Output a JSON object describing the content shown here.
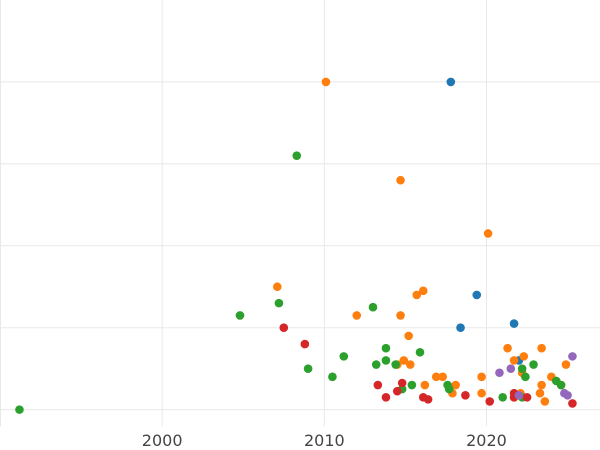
{
  "chart_data": {
    "type": "scatter",
    "title": "",
    "xlabel": "",
    "ylabel": "",
    "xlim": [
      1990,
      2027
    ],
    "ylim": [
      -0.4,
      10
    ],
    "x_ticks": [
      2000,
      2010,
      2020
    ],
    "x_tick_labels": [
      "2000",
      "2010",
      "2020"
    ],
    "y_ticks": [
      0,
      2,
      4,
      6,
      8
    ],
    "y_tick_labels_visible": false,
    "grid": true,
    "legend": "none",
    "series": [
      {
        "color": "#1f77b4",
        "points": [
          [
            2017.8,
            8.0
          ],
          [
            2019.4,
            2.8
          ],
          [
            2018.4,
            2.0
          ],
          [
            2021.7,
            2.1
          ],
          [
            2022.0,
            1.2
          ]
        ]
      },
      {
        "color": "#ff7f0e",
        "points": [
          [
            2010.1,
            8.0
          ],
          [
            2014.7,
            5.6
          ],
          [
            2020.1,
            4.3
          ],
          [
            2007.1,
            3.0
          ],
          [
            2016.1,
            2.9
          ],
          [
            2015.7,
            2.8
          ],
          [
            2012.0,
            2.3
          ],
          [
            2014.7,
            2.3
          ],
          [
            2015.2,
            1.8
          ],
          [
            2021.3,
            1.5
          ],
          [
            2023.4,
            1.5
          ],
          [
            2022.3,
            1.3
          ],
          [
            2021.7,
            1.2
          ],
          [
            2014.9,
            1.2
          ],
          [
            2015.3,
            1.1
          ],
          [
            2014.5,
            1.1
          ],
          [
            2024.9,
            1.1
          ],
          [
            2022.2,
            0.9
          ],
          [
            2016.9,
            0.8
          ],
          [
            2017.3,
            0.8
          ],
          [
            2019.7,
            0.8
          ],
          [
            2024.0,
            0.8
          ],
          [
            2016.2,
            0.6
          ],
          [
            2018.1,
            0.6
          ],
          [
            2023.4,
            0.6
          ],
          [
            2024.6,
            0.6
          ],
          [
            2017.9,
            0.4
          ],
          [
            2019.7,
            0.4
          ],
          [
            2022.1,
            0.4
          ],
          [
            2023.3,
            0.4
          ],
          [
            2021.7,
            0.3
          ],
          [
            2023.6,
            0.2
          ]
        ]
      },
      {
        "color": "#2ca02c",
        "points": [
          [
            2008.3,
            6.2
          ],
          [
            2007.2,
            2.6
          ],
          [
            2004.8,
            2.3
          ],
          [
            2013.0,
            2.5
          ],
          [
            2013.8,
            1.5
          ],
          [
            2015.9,
            1.4
          ],
          [
            2011.2,
            1.3
          ],
          [
            2013.8,
            1.2
          ],
          [
            2013.2,
            1.1
          ],
          [
            2014.4,
            1.1
          ],
          [
            2009.0,
            1.0
          ],
          [
            2022.2,
            1.0
          ],
          [
            2022.9,
            1.1
          ],
          [
            2010.5,
            0.8
          ],
          [
            2022.4,
            0.8
          ],
          [
            2024.3,
            0.7
          ],
          [
            2015.4,
            0.6
          ],
          [
            2017.6,
            0.6
          ],
          [
            2024.6,
            0.6
          ],
          [
            2014.8,
            0.5
          ],
          [
            2017.7,
            0.5
          ],
          [
            2021.0,
            0.3
          ],
          [
            2022.2,
            0.3
          ],
          [
            1991.2,
            0.0
          ]
        ]
      },
      {
        "color": "#d62728",
        "points": [
          [
            2007.5,
            2.0
          ],
          [
            2008.8,
            1.6
          ],
          [
            2013.3,
            0.6
          ],
          [
            2014.8,
            0.65
          ],
          [
            2014.5,
            0.45
          ],
          [
            2013.8,
            0.3
          ],
          [
            2016.1,
            0.3
          ],
          [
            2016.4,
            0.25
          ],
          [
            2018.7,
            0.35
          ],
          [
            2020.2,
            0.2
          ],
          [
            2021.7,
            0.4
          ],
          [
            2021.7,
            0.3
          ],
          [
            2022.5,
            0.3
          ],
          [
            2025.3,
            0.15
          ]
        ]
      },
      {
        "color": "#9467bd",
        "points": [
          [
            2025.3,
            1.3
          ],
          [
            2021.5,
            1.0
          ],
          [
            2020.8,
            0.9
          ],
          [
            2022.0,
            0.35
          ],
          [
            2024.8,
            0.4
          ],
          [
            2025.0,
            0.35
          ]
        ]
      }
    ]
  }
}
